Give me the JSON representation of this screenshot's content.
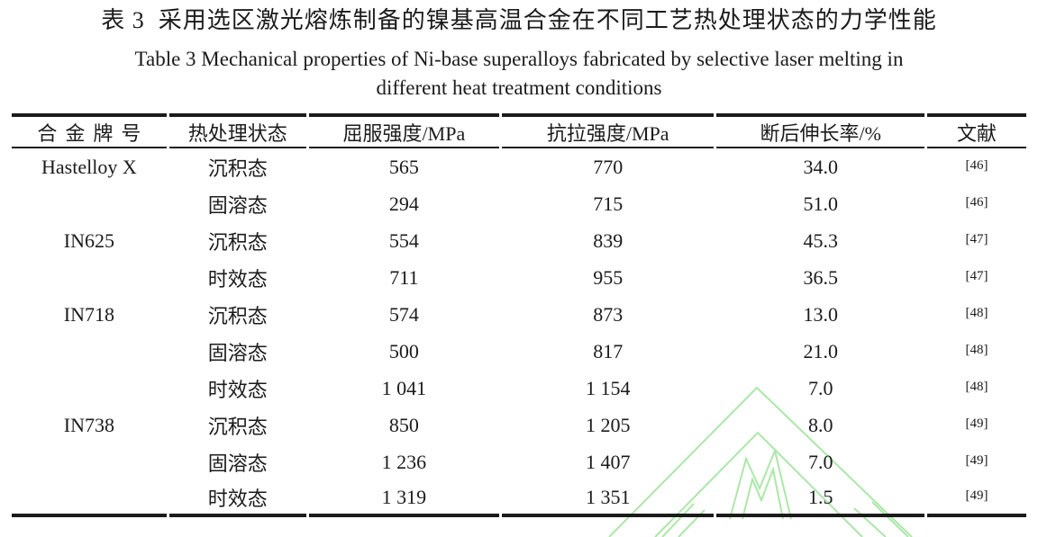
{
  "caption": {
    "zh": "表 3  采用选区激光熔炼制备的镍基高温合金在不同工艺热处理状态的力学性能",
    "en_line1": "Table 3 Mechanical properties of Ni-base superalloys fabricated by selective laser melting in",
    "en_line2": "different heat treatment conditions"
  },
  "table": {
    "headers": [
      "合金牌号",
      "热处理状态",
      "屈服强度/MPa",
      "抗拉强度/MPa",
      "断后伸长率/%",
      "文献"
    ],
    "rows": [
      {
        "alloy": "Hastelloy X",
        "state": "沉积态",
        "yield_strength": "565",
        "tensile_strength": "770",
        "elongation": "34.0",
        "ref": "[46]"
      },
      {
        "alloy": "",
        "state": "固溶态",
        "yield_strength": "294",
        "tensile_strength": "715",
        "elongation": "51.0",
        "ref": "[46]"
      },
      {
        "alloy": "IN625",
        "state": "沉积态",
        "yield_strength": "554",
        "tensile_strength": "839",
        "elongation": "45.3",
        "ref": "[47]"
      },
      {
        "alloy": "",
        "state": "时效态",
        "yield_strength": "711",
        "tensile_strength": "955",
        "elongation": "36.5",
        "ref": "[47]"
      },
      {
        "alloy": "IN718",
        "state": "沉积态",
        "yield_strength": "574",
        "tensile_strength": "873",
        "elongation": "13.0",
        "ref": "[48]"
      },
      {
        "alloy": "",
        "state": "固溶态",
        "yield_strength": "500",
        "tensile_strength": "817",
        "elongation": "21.0",
        "ref": "[48]"
      },
      {
        "alloy": "",
        "state": "时效态",
        "yield_strength": "1 041",
        "tensile_strength": "1 154",
        "elongation": "7.0",
        "ref": "[48]"
      },
      {
        "alloy": "IN738",
        "state": "沉积态",
        "yield_strength": "850",
        "tensile_strength": "1 205",
        "elongation": "8.0",
        "ref": "[49]"
      },
      {
        "alloy": "",
        "state": "固溶态",
        "yield_strength": "1 236",
        "tensile_strength": "1 407",
        "elongation": "7.0",
        "ref": "[49]"
      },
      {
        "alloy": "",
        "state": "时效态",
        "yield_strength": "1 319",
        "tensile_strength": "1 351",
        "elongation": "1.5",
        "ref": "[49]"
      }
    ]
  },
  "colors": {
    "ink": "#1b1b1b",
    "watermark_green": "#a3e59e"
  },
  "watermark": {
    "name": "green-logo-watermark",
    "color": "#a3e59e"
  }
}
